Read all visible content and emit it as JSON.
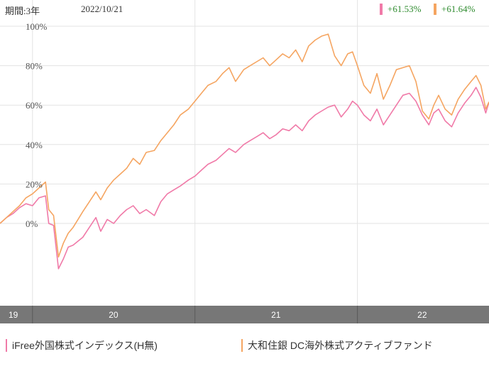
{
  "header": {
    "period_label": "期間:3年",
    "date": "2022/10/21",
    "returns": [
      {
        "value": "+61.53%",
        "color": "#f07aa8"
      },
      {
        "value": "+61.64%",
        "color": "#f5a561"
      }
    ]
  },
  "legend": [
    {
      "label": "iFree外国株式インデックス(H無)",
      "color": "#f07aa8"
    },
    {
      "label": "大和住銀 DC海外株式アクティブファンド",
      "color": "#f5a561"
    }
  ],
  "chart_data": {
    "type": "line",
    "xlabel": "",
    "ylabel": "",
    "ylim": [
      -25,
      100
    ],
    "yticks": [
      0,
      20,
      40,
      60,
      80,
      100
    ],
    "ytick_labels": [
      "0%",
      "20%",
      "40%",
      "60%",
      "80%",
      "100%"
    ],
    "xlim": [
      2019.8,
      2022.81
    ],
    "year_boundaries": [
      2020,
      2021,
      2022
    ],
    "year_labels": [
      {
        "label": "19",
        "x": 2019.8
      },
      {
        "label": "20",
        "x": 2020.5
      },
      {
        "label": "21",
        "x": 2021.5
      },
      {
        "label": "22",
        "x": 2022.4
      }
    ],
    "grid": true,
    "series": [
      {
        "name": "iFree外国株式インデックス(H無)",
        "color": "#f07aa8",
        "points": [
          [
            2019.8,
            0
          ],
          [
            2019.84,
            3
          ],
          [
            2019.88,
            5
          ],
          [
            2019.92,
            8
          ],
          [
            2019.96,
            10
          ],
          [
            2020.0,
            9
          ],
          [
            2020.04,
            13
          ],
          [
            2020.08,
            14
          ],
          [
            2020.1,
            0
          ],
          [
            2020.13,
            -1
          ],
          [
            2020.16,
            -23
          ],
          [
            2020.19,
            -18
          ],
          [
            2020.22,
            -12
          ],
          [
            2020.25,
            -11
          ],
          [
            2020.28,
            -9
          ],
          [
            2020.31,
            -7
          ],
          [
            2020.35,
            -2
          ],
          [
            2020.39,
            3
          ],
          [
            2020.42,
            -4
          ],
          [
            2020.46,
            2
          ],
          [
            2020.5,
            0
          ],
          [
            2020.54,
            4
          ],
          [
            2020.58,
            7
          ],
          [
            2020.62,
            9
          ],
          [
            2020.66,
            5
          ],
          [
            2020.7,
            7
          ],
          [
            2020.75,
            4
          ],
          [
            2020.79,
            11
          ],
          [
            2020.83,
            15
          ],
          [
            2020.87,
            17
          ],
          [
            2020.91,
            19
          ],
          [
            2020.96,
            22
          ],
          [
            2021.0,
            24
          ],
          [
            2021.04,
            27
          ],
          [
            2021.08,
            30
          ],
          [
            2021.13,
            32
          ],
          [
            2021.17,
            35
          ],
          [
            2021.21,
            38
          ],
          [
            2021.25,
            36
          ],
          [
            2021.3,
            40
          ],
          [
            2021.34,
            42
          ],
          [
            2021.38,
            44
          ],
          [
            2021.42,
            46
          ],
          [
            2021.46,
            43
          ],
          [
            2021.5,
            45
          ],
          [
            2021.54,
            48
          ],
          [
            2021.58,
            47
          ],
          [
            2021.62,
            50
          ],
          [
            2021.66,
            47
          ],
          [
            2021.7,
            52
          ],
          [
            2021.74,
            55
          ],
          [
            2021.78,
            57
          ],
          [
            2021.82,
            59
          ],
          [
            2021.86,
            60
          ],
          [
            2021.9,
            54
          ],
          [
            2021.94,
            58
          ],
          [
            2021.97,
            62
          ],
          [
            2022.0,
            60
          ],
          [
            2022.04,
            55
          ],
          [
            2022.08,
            52
          ],
          [
            2022.12,
            58
          ],
          [
            2022.16,
            50
          ],
          [
            2022.2,
            55
          ],
          [
            2022.24,
            60
          ],
          [
            2022.28,
            65
          ],
          [
            2022.32,
            66
          ],
          [
            2022.36,
            62
          ],
          [
            2022.4,
            55
          ],
          [
            2022.44,
            50
          ],
          [
            2022.47,
            56
          ],
          [
            2022.5,
            58
          ],
          [
            2022.54,
            52
          ],
          [
            2022.58,
            49
          ],
          [
            2022.62,
            56
          ],
          [
            2022.66,
            61
          ],
          [
            2022.7,
            65
          ],
          [
            2022.73,
            69
          ],
          [
            2022.76,
            64
          ],
          [
            2022.79,
            56
          ],
          [
            2022.81,
            61.53
          ]
        ]
      },
      {
        "name": "大和住銀 DC海外株式アクティブファンド",
        "color": "#f5a561",
        "points": [
          [
            2019.8,
            0
          ],
          [
            2019.84,
            3
          ],
          [
            2019.88,
            6
          ],
          [
            2019.92,
            9
          ],
          [
            2019.96,
            13
          ],
          [
            2020.0,
            15
          ],
          [
            2020.04,
            18
          ],
          [
            2020.08,
            21
          ],
          [
            2020.1,
            7
          ],
          [
            2020.13,
            4
          ],
          [
            2020.16,
            -17
          ],
          [
            2020.19,
            -10
          ],
          [
            2020.22,
            -5
          ],
          [
            2020.25,
            -2
          ],
          [
            2020.28,
            2
          ],
          [
            2020.31,
            6
          ],
          [
            2020.35,
            11
          ],
          [
            2020.39,
            16
          ],
          [
            2020.42,
            12
          ],
          [
            2020.46,
            18
          ],
          [
            2020.5,
            22
          ],
          [
            2020.54,
            25
          ],
          [
            2020.58,
            28
          ],
          [
            2020.62,
            33
          ],
          [
            2020.66,
            30
          ],
          [
            2020.7,
            36
          ],
          [
            2020.75,
            37
          ],
          [
            2020.79,
            42
          ],
          [
            2020.83,
            46
          ],
          [
            2020.87,
            50
          ],
          [
            2020.91,
            55
          ],
          [
            2020.96,
            58
          ],
          [
            2021.0,
            62
          ],
          [
            2021.04,
            66
          ],
          [
            2021.08,
            70
          ],
          [
            2021.13,
            72
          ],
          [
            2021.17,
            76
          ],
          [
            2021.21,
            79
          ],
          [
            2021.25,
            72
          ],
          [
            2021.3,
            78
          ],
          [
            2021.34,
            80
          ],
          [
            2021.38,
            82
          ],
          [
            2021.42,
            84
          ],
          [
            2021.46,
            80
          ],
          [
            2021.5,
            83
          ],
          [
            2021.54,
            86
          ],
          [
            2021.58,
            84
          ],
          [
            2021.62,
            88
          ],
          [
            2021.66,
            82
          ],
          [
            2021.7,
            90
          ],
          [
            2021.74,
            93
          ],
          [
            2021.78,
            95
          ],
          [
            2021.82,
            96
          ],
          [
            2021.86,
            85
          ],
          [
            2021.9,
            80
          ],
          [
            2021.94,
            86
          ],
          [
            2021.97,
            87
          ],
          [
            2022.0,
            80
          ],
          [
            2022.04,
            70
          ],
          [
            2022.08,
            66
          ],
          [
            2022.12,
            76
          ],
          [
            2022.16,
            63
          ],
          [
            2022.2,
            70
          ],
          [
            2022.24,
            78
          ],
          [
            2022.28,
            79
          ],
          [
            2022.32,
            80
          ],
          [
            2022.36,
            72
          ],
          [
            2022.4,
            57
          ],
          [
            2022.44,
            53
          ],
          [
            2022.47,
            60
          ],
          [
            2022.5,
            65
          ],
          [
            2022.54,
            58
          ],
          [
            2022.58,
            55
          ],
          [
            2022.62,
            63
          ],
          [
            2022.66,
            68
          ],
          [
            2022.7,
            72
          ],
          [
            2022.73,
            75
          ],
          [
            2022.76,
            70
          ],
          [
            2022.79,
            58
          ],
          [
            2022.81,
            61.64
          ]
        ]
      }
    ]
  }
}
